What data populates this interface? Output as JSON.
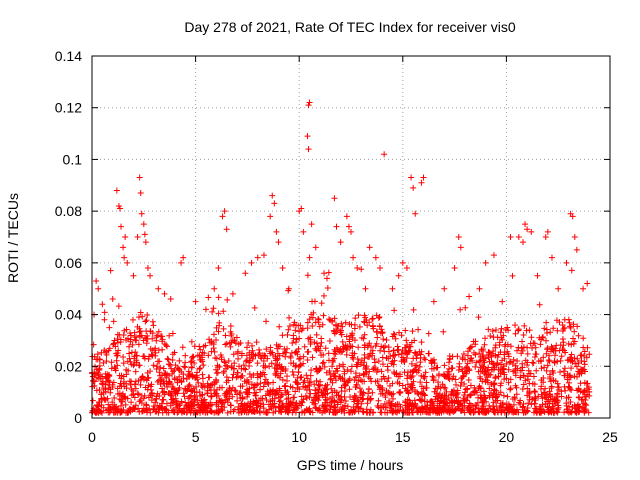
{
  "chart_data": {
    "type": "scatter",
    "title": "Day 278 of 2021, Rate Of TEC Index for receiver vis0",
    "xlabel": "GPS time / hours",
    "ylabel": "ROTI / TECUs",
    "xlim": [
      0,
      25
    ],
    "ylim": [
      0,
      0.14
    ],
    "x_ticks": [
      0,
      5,
      10,
      15,
      20,
      25
    ],
    "x_tick_labels": [
      "0",
      "5",
      "10",
      "15",
      "20",
      "25"
    ],
    "y_ticks": [
      0,
      0.02,
      0.04,
      0.06,
      0.08,
      0.1,
      0.12,
      0.14
    ],
    "y_tick_labels": [
      "0",
      "0.02",
      "0.04",
      "0.06",
      "0.08",
      "0.1",
      "0.12",
      "0.14"
    ],
    "grid": true,
    "marker": "+",
    "series": [
      {
        "name": "ROTI",
        "color": "#ff0000",
        "points": [
          [
            0.1,
            0.04
          ],
          [
            0.2,
            0.053
          ],
          [
            0.3,
            0.05
          ],
          [
            0.5,
            0.044
          ],
          [
            0.6,
            0.038
          ],
          [
            0.9,
            0.057
          ],
          [
            1.0,
            0.046
          ],
          [
            1.2,
            0.088
          ],
          [
            1.3,
            0.082
          ],
          [
            1.35,
            0.081
          ],
          [
            1.4,
            0.074
          ],
          [
            1.5,
            0.066
          ],
          [
            1.55,
            0.062
          ],
          [
            1.6,
            0.07
          ],
          [
            1.7,
            0.06
          ],
          [
            2.0,
            0.055
          ],
          [
            2.2,
            0.07
          ],
          [
            2.3,
            0.093
          ],
          [
            2.35,
            0.087
          ],
          [
            2.4,
            0.079
          ],
          [
            2.5,
            0.075
          ],
          [
            2.55,
            0.071
          ],
          [
            2.6,
            0.068
          ],
          [
            2.7,
            0.058
          ],
          [
            2.8,
            0.055
          ],
          [
            3.2,
            0.05
          ],
          [
            3.5,
            0.048
          ],
          [
            3.8,
            0.046
          ],
          [
            4.3,
            0.06
          ],
          [
            4.4,
            0.062
          ],
          [
            5.0,
            0.045
          ],
          [
            5.5,
            0.042
          ],
          [
            5.9,
            0.05
          ],
          [
            6.1,
            0.058
          ],
          [
            6.3,
            0.078
          ],
          [
            6.4,
            0.08
          ],
          [
            6.5,
            0.073
          ],
          [
            6.8,
            0.048
          ],
          [
            7.4,
            0.056
          ],
          [
            7.7,
            0.06
          ],
          [
            8.0,
            0.062
          ],
          [
            8.3,
            0.063
          ],
          [
            8.6,
            0.078
          ],
          [
            8.7,
            0.086
          ],
          [
            8.8,
            0.083
          ],
          [
            8.9,
            0.072
          ],
          [
            9.0,
            0.068
          ],
          [
            9.2,
            0.058
          ],
          [
            9.5,
            0.05
          ],
          [
            10.0,
            0.08
          ],
          [
            10.1,
            0.081
          ],
          [
            10.2,
            0.072
          ],
          [
            10.45,
            0.121
          ],
          [
            10.5,
            0.122
          ],
          [
            10.4,
            0.109
          ],
          [
            10.45,
            0.104
          ],
          [
            10.5,
            0.062
          ],
          [
            10.6,
            0.075
          ],
          [
            10.8,
            0.066
          ],
          [
            11.2,
            0.056
          ],
          [
            11.7,
            0.085
          ],
          [
            11.8,
            0.074
          ],
          [
            12.0,
            0.068
          ],
          [
            12.3,
            0.078
          ],
          [
            12.4,
            0.074
          ],
          [
            12.5,
            0.072
          ],
          [
            12.6,
            0.062
          ],
          [
            12.8,
            0.058
          ],
          [
            13.2,
            0.05
          ],
          [
            13.4,
            0.066
          ],
          [
            13.7,
            0.062
          ],
          [
            13.9,
            0.058
          ],
          [
            14.1,
            0.102
          ],
          [
            14.5,
            0.05
          ],
          [
            14.8,
            0.055
          ],
          [
            15.0,
            0.06
          ],
          [
            15.2,
            0.058
          ],
          [
            15.4,
            0.093
          ],
          [
            15.5,
            0.089
          ],
          [
            15.6,
            0.079
          ],
          [
            15.9,
            0.091
          ],
          [
            16.0,
            0.093
          ],
          [
            16.5,
            0.045
          ],
          [
            17.0,
            0.05
          ],
          [
            17.5,
            0.058
          ],
          [
            17.7,
            0.07
          ],
          [
            17.8,
            0.066
          ],
          [
            18.2,
            0.047
          ],
          [
            18.7,
            0.05
          ],
          [
            19.0,
            0.06
          ],
          [
            19.4,
            0.063
          ],
          [
            19.8,
            0.045
          ],
          [
            20.2,
            0.07
          ],
          [
            20.6,
            0.07
          ],
          [
            20.8,
            0.068
          ],
          [
            20.9,
            0.075
          ],
          [
            21.0,
            0.073
          ],
          [
            21.2,
            0.072
          ],
          [
            21.5,
            0.055
          ],
          [
            21.9,
            0.07
          ],
          [
            22.0,
            0.072
          ],
          [
            22.2,
            0.062
          ],
          [
            22.5,
            0.05
          ],
          [
            22.9,
            0.06
          ],
          [
            23.1,
            0.079
          ],
          [
            23.2,
            0.078
          ],
          [
            23.3,
            0.07
          ],
          [
            23.4,
            0.065
          ],
          [
            23.7,
            0.05
          ],
          [
            23.9,
            0.052
          ]
        ],
        "dense_band": {
          "x_range": [
            0,
            24
          ],
          "base_low": 0.002,
          "base_high": 0.03,
          "note": "thousands of overlapping points forming a solid band"
        }
      }
    ]
  }
}
